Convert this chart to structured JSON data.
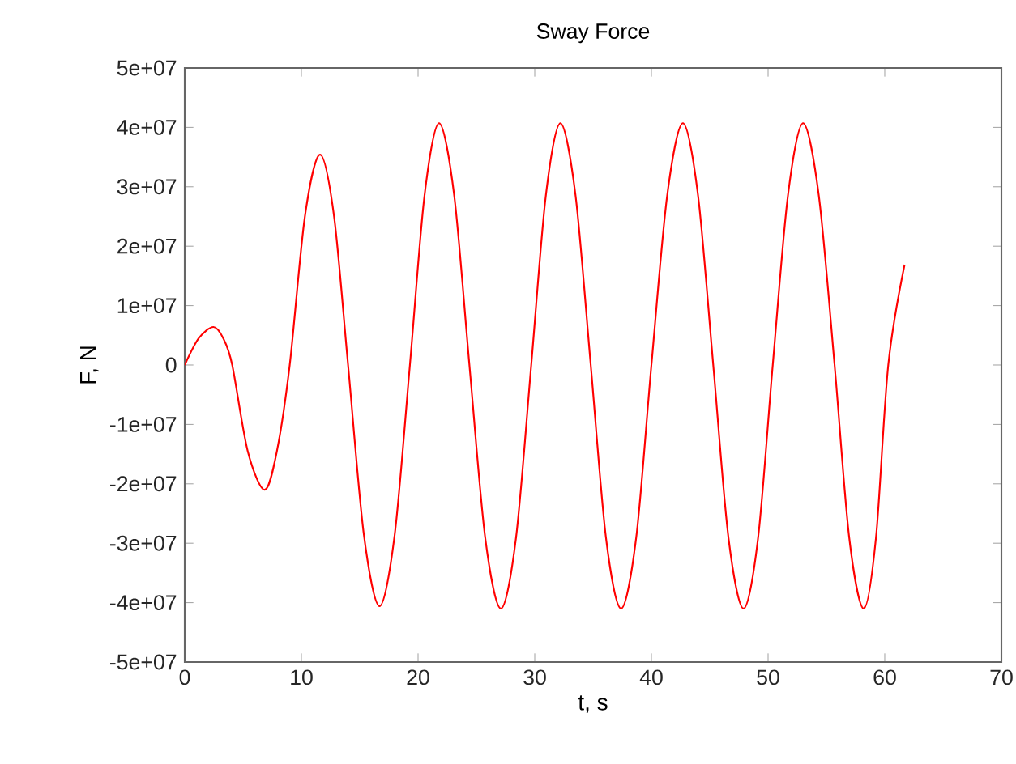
{
  "chart_data": {
    "type": "line",
    "title": "Sway Force",
    "xlabel": "t, s",
    "ylabel": "F, N",
    "x": [
      0,
      1.2,
      2.46,
      3.3,
      4.07,
      5.4,
      6.85,
      7.9,
      9.0,
      10.3,
      11.6,
      12.8,
      14.0,
      15.35,
      16.7,
      18.0,
      19.3,
      20.55,
      21.8,
      23.1,
      24.4,
      25.75,
      27.1,
      28.4,
      29.7,
      30.95,
      32.2,
      33.5,
      34.8,
      36.1,
      37.4,
      38.7,
      40.0,
      41.35,
      42.7,
      44.0,
      45.3,
      46.6,
      47.9,
      49.15,
      50.4,
      51.7,
      53.0,
      54.35,
      55.7,
      56.95,
      58.2,
      59.25,
      60.3,
      61.7
    ],
    "series": [
      {
        "color": "#ff0000",
        "values": [
          0,
          4500000.0,
          6400000.0,
          4500000.0,
          0,
          -14500000.0,
          -21000000.0,
          -14500000.0,
          0,
          25000000.0,
          35400000.0,
          25000000.0,
          0,
          -28500000.0,
          -40600000.0,
          -28500000.0,
          0,
          28500000.0,
          40700000.0,
          28500000.0,
          0,
          -29000000.0,
          -41000000.0,
          -29000000.0,
          0,
          28500000.0,
          40700000.0,
          28500000.0,
          0,
          -29000000.0,
          -41000000.0,
          -29000000.0,
          0,
          28500000.0,
          40700000.0,
          28500000.0,
          0,
          -29000000.0,
          -41000000.0,
          -29000000.0,
          0,
          28500000.0,
          40700000.0,
          28500000.0,
          0,
          -29000000.0,
          -41000000.0,
          -29000000.0,
          0,
          16900000.0
        ]
      }
    ],
    "xlim": [
      0,
      70
    ],
    "xticks": [
      0,
      10,
      20,
      30,
      40,
      50,
      60,
      70
    ],
    "ylim": [
      -50000000,
      50000000
    ],
    "yticks": [
      {
        "value": -50000000,
        "label": "-5e+07"
      },
      {
        "value": -40000000,
        "label": "-4e+07"
      },
      {
        "value": -30000000,
        "label": "-3e+07"
      },
      {
        "value": -20000000,
        "label": "-2e+07"
      },
      {
        "value": -10000000,
        "label": "-1e+07"
      },
      0,
      {
        "value": 10000000,
        "label": "1e+07"
      },
      {
        "value": 20000000,
        "label": "2e+07"
      },
      {
        "value": 30000000,
        "label": "3e+07"
      },
      {
        "value": 40000000,
        "label": "4e+07"
      },
      {
        "value": 50000000,
        "label": "5e+07"
      }
    ],
    "marker": "none",
    "line_style": "solid"
  }
}
